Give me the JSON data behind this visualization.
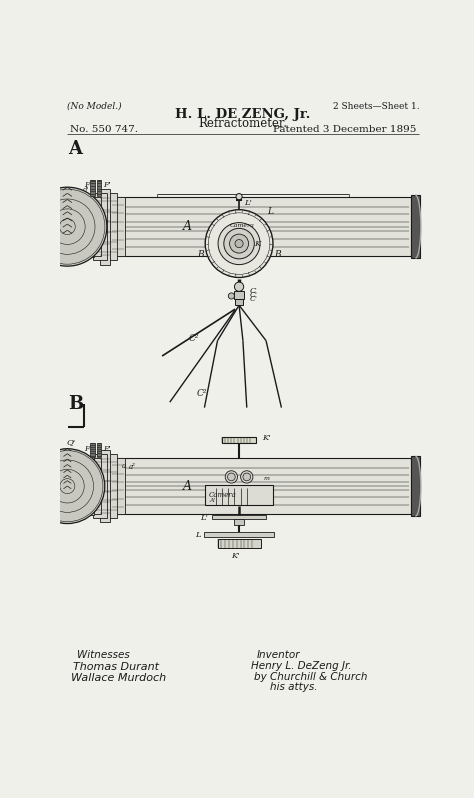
{
  "bg_color": "#f0f0eb",
  "line_color": "#1a1a1a",
  "title_line1": "H. L. DE ZENG, Jr.",
  "title_line2": "Refractometer.",
  "top_left": "(No Model.)",
  "top_right": "2 Sheets—Sheet 1.",
  "patent_no": "No. 550 747.",
  "patent_date": "Patented 3 December 1895",
  "label_A": "A",
  "label_B": "B",
  "witness_label": "Witnesses",
  "witness1": "Thomas Durant",
  "witness2": "Wallace Murdoch",
  "inventor_label": "Inventor",
  "inventor1": "Henry L. DeZeng Jr.",
  "inventor2": "by Churchill & Church",
  "inventor3": "his attys."
}
